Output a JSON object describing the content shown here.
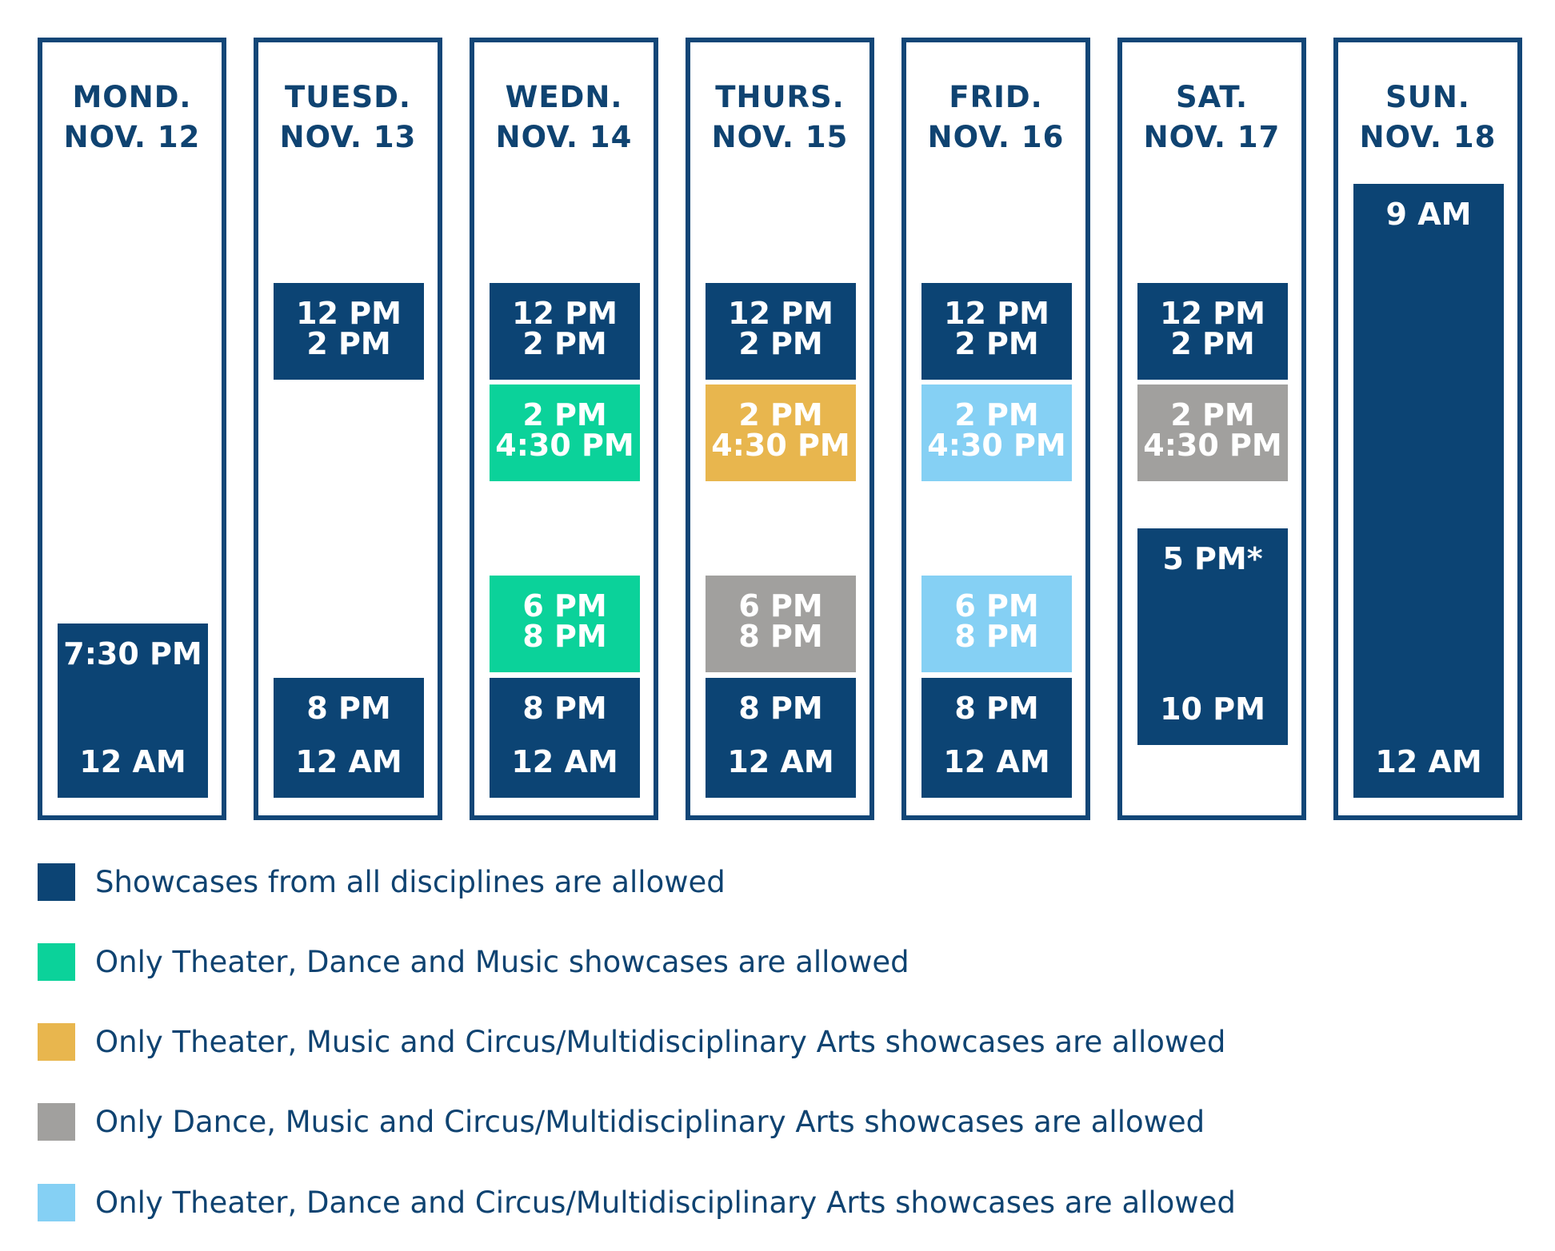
{
  "colors": {
    "all": "#0c4474",
    "theater_dance_music": "#0bd29a",
    "theater_music_circus": "#e8b64e",
    "dance_music_circus": "#a1a09e",
    "theater_dance_circus": "#85d0f4",
    "border": "#124677",
    "text": "#0f4371"
  },
  "days": [
    {
      "day": "MOND.",
      "date": "NOV. 12",
      "slots": [
        {
          "start": "7:30 PM",
          "end": "12 AM",
          "type": "all"
        }
      ]
    },
    {
      "day": "TUESD.",
      "date": "NOV. 13",
      "slots": [
        {
          "start": "12 PM",
          "end": "2 PM",
          "type": "all"
        },
        {
          "start": "8 PM",
          "end": "12 AM",
          "type": "all"
        }
      ]
    },
    {
      "day": "WEDN.",
      "date": "NOV. 14",
      "slots": [
        {
          "start": "12 PM",
          "end": "2 PM",
          "type": "all"
        },
        {
          "start": "2 PM",
          "end": "4:30 PM",
          "type": "theater_dance_music"
        },
        {
          "start": "6 PM",
          "end": "8 PM",
          "type": "theater_dance_music"
        },
        {
          "start": "8 PM",
          "end": "12 AM",
          "type": "all"
        }
      ]
    },
    {
      "day": "THURS.",
      "date": "NOV. 15",
      "slots": [
        {
          "start": "12 PM",
          "end": "2 PM",
          "type": "all"
        },
        {
          "start": "2 PM",
          "end": "4:30 PM",
          "type": "theater_music_circus"
        },
        {
          "start": "6 PM",
          "end": "8 PM",
          "type": "dance_music_circus"
        },
        {
          "start": "8 PM",
          "end": "12 AM",
          "type": "all"
        }
      ]
    },
    {
      "day": "FRID.",
      "date": "NOV. 16",
      "slots": [
        {
          "start": "12 PM",
          "end": "2 PM",
          "type": "all"
        },
        {
          "start": "2 PM",
          "end": "4:30 PM",
          "type": "theater_dance_circus"
        },
        {
          "start": "6 PM",
          "end": "8 PM",
          "type": "theater_dance_circus"
        },
        {
          "start": "8 PM",
          "end": "12 AM",
          "type": "all"
        }
      ]
    },
    {
      "day": "SAT.",
      "date": "NOV. 17",
      "slots": [
        {
          "start": "12 PM",
          "end": "2 PM",
          "type": "all"
        },
        {
          "start": "2 PM",
          "end": "4:30 PM",
          "type": "dance_music_circus"
        },
        {
          "start": "5 PM*",
          "end": "10 PM",
          "type": "all"
        }
      ]
    },
    {
      "day": "SUN.",
      "date": "NOV. 18",
      "slots": [
        {
          "start": "9 AM",
          "end": "12 AM",
          "type": "all"
        }
      ]
    }
  ],
  "legend": [
    {
      "type": "all",
      "label": "Showcases from all disciplines are allowed"
    },
    {
      "type": "theater_dance_music",
      "label": "Only Theater, Dance and Music showcases are allowed"
    },
    {
      "type": "theater_music_circus",
      "label": "Only Theater, Music and Circus/Multidisciplinary Arts showcases are allowed"
    },
    {
      "type": "dance_music_circus",
      "label": "Only Dance, Music and Circus/Multidisciplinary Arts showcases are allowed"
    },
    {
      "type": "theater_dance_circus",
      "label": "Only Theater, Dance and Circus/Multidisciplinary Arts showcases are allowed"
    }
  ]
}
